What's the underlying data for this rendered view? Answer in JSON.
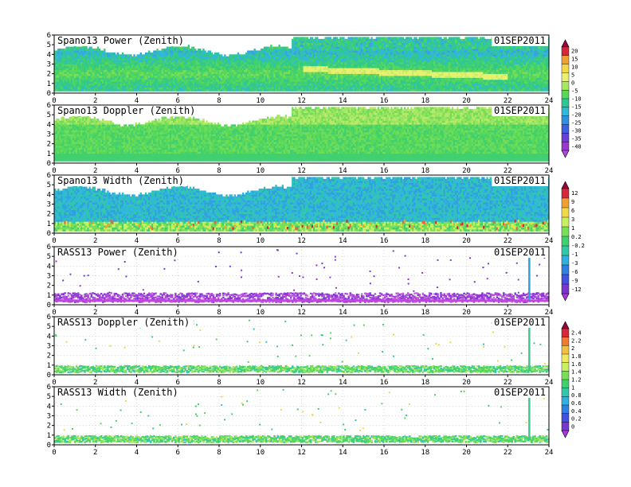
{
  "chart_data": [
    {
      "type": "heatmap",
      "title": "Spano13 Power (Zenith)",
      "date": "01SEP2011",
      "xlim": [
        0,
        24
      ],
      "ylim": [
        0,
        6
      ],
      "x_ticks": [
        "0",
        "2",
        "4",
        "6",
        "8",
        "10",
        "12",
        "14",
        "16",
        "18",
        "20",
        "22",
        "24"
      ],
      "y_ticks": [
        "0",
        "1",
        "2",
        "3",
        "4",
        "5",
        "6"
      ],
      "field": "power"
    },
    {
      "type": "heatmap",
      "title": "Spano13 Doppler (Zenith)",
      "date": "01SEP2011",
      "xlim": [
        0,
        24
      ],
      "ylim": [
        0,
        6
      ],
      "x_ticks": [
        "0",
        "2",
        "4",
        "6",
        "8",
        "10",
        "12",
        "14",
        "16",
        "18",
        "20",
        "22",
        "24"
      ],
      "y_ticks": [
        "0",
        "1",
        "2",
        "3",
        "4",
        "5",
        "6"
      ],
      "field": "doppler"
    },
    {
      "type": "heatmap",
      "title": "Spano13 Width (Zenith)",
      "date": "01SEP2011",
      "xlim": [
        0,
        24
      ],
      "ylim": [
        0,
        6
      ],
      "x_ticks": [
        "0",
        "2",
        "4",
        "6",
        "8",
        "10",
        "12",
        "14",
        "16",
        "18",
        "20",
        "22",
        "24"
      ],
      "y_ticks": [
        "0",
        "1",
        "2",
        "3",
        "4",
        "5",
        "6"
      ],
      "field": "width"
    },
    {
      "type": "heatmap",
      "title": "RASS13 Power (Zenith)",
      "date": "01SEP2011",
      "xlim": [
        0,
        24
      ],
      "ylim": [
        0,
        6
      ],
      "x_ticks": [
        "0",
        "2",
        "4",
        "6",
        "8",
        "10",
        "12",
        "14",
        "16",
        "18",
        "20",
        "22",
        "24"
      ],
      "y_ticks": [
        "0",
        "1",
        "2",
        "3",
        "4",
        "5",
        "6"
      ],
      "field": "rass-power"
    },
    {
      "type": "heatmap",
      "title": "RASS13 Doppler (Zenith)",
      "date": "01SEP2011",
      "xlim": [
        0,
        24
      ],
      "ylim": [
        0,
        6
      ],
      "x_ticks": [
        "0",
        "2",
        "4",
        "6",
        "8",
        "10",
        "12",
        "14",
        "16",
        "18",
        "20",
        "22",
        "24"
      ],
      "y_ticks": [
        "0",
        "1",
        "2",
        "3",
        "4",
        "5",
        "6"
      ],
      "field": "rass-doppler"
    },
    {
      "type": "heatmap",
      "title": "RASS13 Width (Zenith)",
      "date": "01SEP2011",
      "xlim": [
        0,
        24
      ],
      "ylim": [
        0,
        6
      ],
      "x_ticks": [
        "0",
        "2",
        "4",
        "6",
        "8",
        "10",
        "12",
        "14",
        "16",
        "18",
        "20",
        "22",
        "24"
      ],
      "y_ticks": [
        "0",
        "1",
        "2",
        "3",
        "4",
        "5",
        "6"
      ],
      "field": "rass-width"
    }
  ],
  "colorbars": [
    {
      "labels": [
        "20",
        "15",
        "10",
        "5",
        "0",
        "-5",
        "-10",
        "-15",
        "-20",
        "-25",
        "-30",
        "-35",
        "-40"
      ],
      "colors": [
        "#a0003c",
        "#d8263a",
        "#f0a030",
        "#f0d848",
        "#e8f070",
        "#a8e860",
        "#58d858",
        "#30c890",
        "#30b8d8",
        "#3090e0",
        "#3c60e0",
        "#6840d8",
        "#9838d0",
        "#b048d8"
      ]
    },
    {
      "labels": [
        "12",
        "9",
        "6",
        "3",
        "1",
        "0.2",
        "-0.2",
        "-1",
        "-3",
        "-6",
        "-9",
        "-12"
      ],
      "colors": [
        "#a0003c",
        "#d8263a",
        "#f0a030",
        "#f0d848",
        "#c8f060",
        "#78e058",
        "#40d070",
        "#30c8a8",
        "#30b0e0",
        "#3080e0",
        "#4450e0",
        "#7838d0",
        "#a838d8"
      ]
    },
    {
      "labels": [
        "2.4",
        "2.2",
        "2",
        "1.8",
        "1.6",
        "1.4",
        "1.2",
        "1",
        "0.8",
        "0.6",
        "0.4",
        "0.2",
        "0"
      ],
      "colors": [
        "#a0003c",
        "#d8263a",
        "#f07830",
        "#f0c040",
        "#f0e860",
        "#c8f060",
        "#78e058",
        "#40d070",
        "#30c8a8",
        "#30b0e0",
        "#3080e0",
        "#4450e0",
        "#7838d0",
        "#a838d8"
      ]
    }
  ]
}
